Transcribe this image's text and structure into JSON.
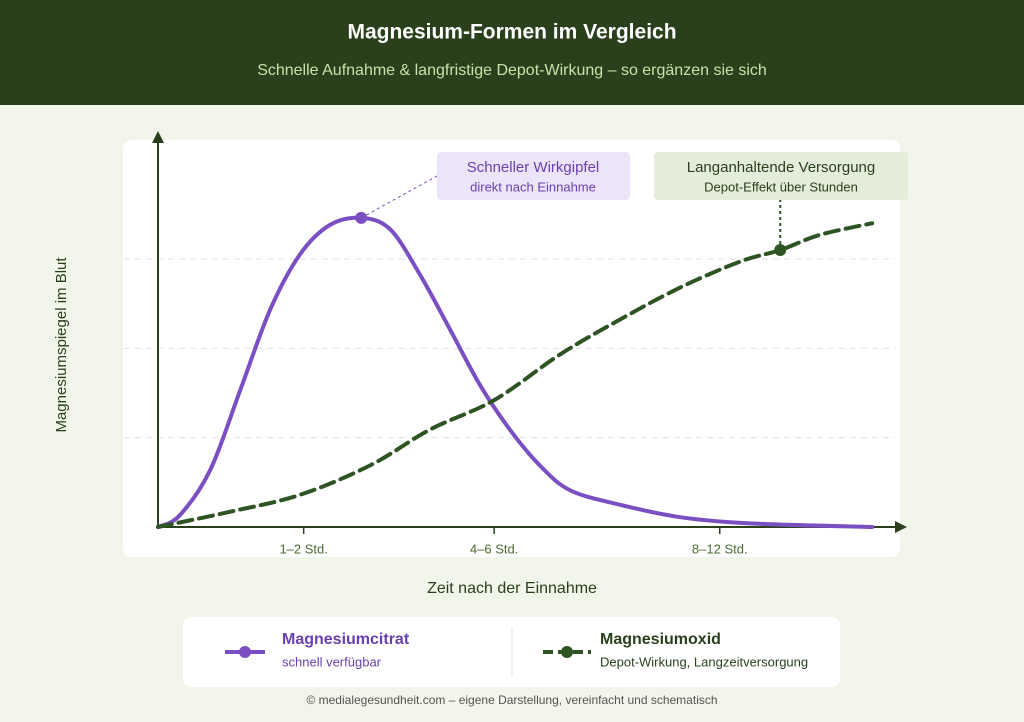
{
  "chart_data": {
    "type": "line",
    "title": "Magnesium-Formen im Vergleich",
    "subtitle": "Schnelle Aufnahme & langfristige Depot-Wirkung – so ergänzen sie sich",
    "x_label": "Zeit nach der Einnahme",
    "y_label": "Magnesiumspiegel im Blut",
    "xlim": [
      0,
      100
    ],
    "xticks": [
      {
        "value": 19.5,
        "label": "1–2 Std."
      },
      {
        "value": 45,
        "label": "4–6 Std."
      },
      {
        "value": 75.2,
        "label": "8–12 Std."
      }
    ],
    "ylim": [
      0,
      4.41
    ],
    "yticks": [
      1,
      2,
      3
    ],
    "grid": true,
    "series": [
      {
        "name": "Magnesiumcitrat",
        "description": "schnell verfügbar",
        "color": "#7a4fc2",
        "dashed": false,
        "highlight": 7,
        "x": [
          0,
          2.9,
          7.0,
          11.0,
          15.0,
          19.0,
          23.0,
          27.2,
          31.1,
          35.1,
          39.1,
          43.1,
          47.1,
          51.1,
          55.2,
          61.8,
          69.9,
          79.3,
          95.6
        ],
        "values": [
          0,
          0.13,
          0.64,
          1.53,
          2.43,
          3.05,
          3.38,
          3.46,
          3.33,
          2.82,
          2.21,
          1.59,
          1.09,
          0.69,
          0.41,
          0.25,
          0.11,
          0.04,
          0
        ]
      },
      {
        "name": "Magnesiumoxid",
        "description": "Depot-Wirkung, Langzeitversorgung",
        "color": "#2f5424",
        "dashed": true,
        "highlight": 10,
        "x": [
          0,
          9.6,
          19.0,
          28.4,
          36.4,
          45.0,
          53.8,
          61.8,
          69.9,
          77.9,
          83.3,
          88.6,
          95.6
        ],
        "values": [
          0,
          0.17,
          0.36,
          0.69,
          1.09,
          1.42,
          1.93,
          2.32,
          2.68,
          2.97,
          3.1,
          3.27,
          3.4
        ]
      }
    ],
    "annotations": [
      {
        "title": "Schneller Wirkgipfel",
        "text": "direkt nach Einnahme"
      },
      {
        "title": "Langanhaltende Versorgung",
        "text": "Depot-Effekt über Stunden"
      }
    ],
    "source": "© medialegesundheit.com – eigene Darstellung, vereinfacht und schematisch"
  }
}
